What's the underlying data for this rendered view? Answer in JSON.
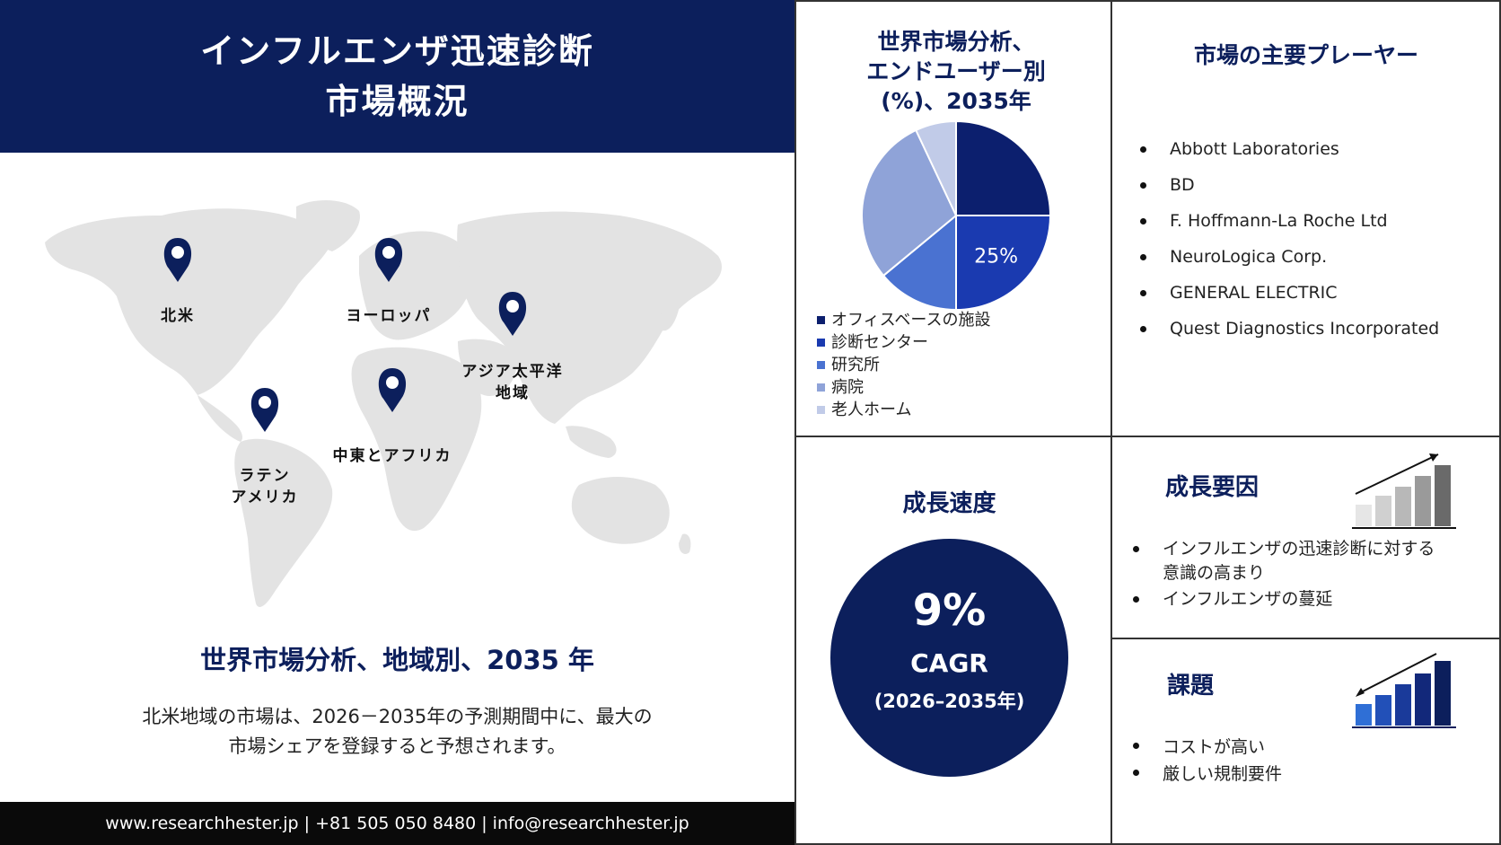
{
  "header": {
    "title_line1": "インフルエンザ迅速診断",
    "title_line2": "市場概況"
  },
  "map": {
    "regions": [
      {
        "id": "north-america",
        "label": "北米"
      },
      {
        "id": "europe",
        "label": "ヨーロッパ"
      },
      {
        "id": "asia-pacific",
        "label": "アジア太平洋\n地域"
      },
      {
        "id": "mea",
        "label": "中東とアフリカ"
      },
      {
        "id": "latin-america",
        "label": "ラテン\nアメリカ"
      }
    ]
  },
  "region_analysis": {
    "title": "世界市場分析、地域別、2035 年",
    "desc_line1": "北米地域の市場は、2026－2035年の予測期間中に、最大の",
    "desc_line2": "市場シェアを登録すると予想されます。"
  },
  "footer": {
    "contact": "www.researchhester.jp  | +81 505 050 8480 | info@researchhester.jp"
  },
  "pie": {
    "title_line1": "世界市場分析、",
    "title_line2": "エンドユーザー別",
    "title_line3": "(%)、2035年",
    "label_text": "25%"
  },
  "chart_data": {
    "type": "pie",
    "title": "世界市場分析、エンドユーザー別 (%)、2035年",
    "labels": [
      "オフィスベースの施設",
      "診断センター",
      "研究所",
      "病院",
      "老人ホーム"
    ],
    "values": [
      25,
      25,
      14,
      29,
      7
    ],
    "colors": [
      "#0c1f6e",
      "#1a3ab0",
      "#4a72d1",
      "#8fa3d8",
      "#c1cbe8"
    ],
    "data_labels": [
      "",
      "25%",
      "",
      "",
      ""
    ],
    "legend_position": "bottom-left"
  },
  "players": {
    "title": "市場の主要プレーヤー",
    "items": [
      "Abbott Laboratories",
      "BD",
      "F. Hoffmann-La Roche Ltd",
      "NeuroLogica Corp.",
      "GENERAL ELECTRIC",
      "Quest Diagnostics Incorporated"
    ]
  },
  "growth": {
    "title": "成長速度",
    "value": "9%",
    "label": "CAGR",
    "period": "(2026–2035年)"
  },
  "drivers": {
    "title": "成長要因",
    "items": [
      "インフルエンザの迅速診断に対する\n意識の高まり",
      "インフルエンザの蔓延"
    ]
  },
  "challenges": {
    "title": "課題",
    "items": [
      "コストが高い",
      "厳しい規制要件"
    ]
  }
}
